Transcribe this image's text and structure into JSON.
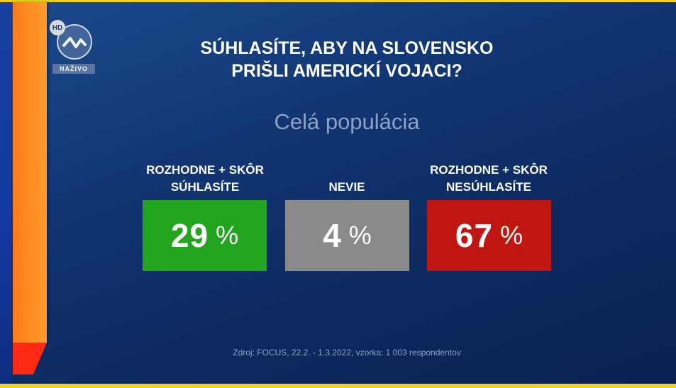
{
  "logo": {
    "hd_label": "HD",
    "live_label": "NAŽIVO"
  },
  "question": {
    "line1": "SÚHLASÍTE, ABY NA SLOVENSKO",
    "line2": "PRIŠLI AMERICKÍ VOJACI?"
  },
  "subtitle": "Celá populácia",
  "results": [
    {
      "label_line1": "ROZHODNE + SKÔR",
      "label_line2": "SÚHLASÍTE",
      "value": "29",
      "unit": "%",
      "color": "#22a41f"
    },
    {
      "label_line1": "NEVIE",
      "label_line2": "",
      "value": "4",
      "unit": "%",
      "color": "#8a8a8a"
    },
    {
      "label_line1": "ROZHODNE + SKÔR",
      "label_line2": "NESÚHLASÍTE",
      "value": "67",
      "unit": "%",
      "color": "#bf1612"
    }
  ],
  "source": "Zdroj: FOCUS, 22.2. - 1.3.2022, vzorka: 1 003 respondentov"
}
